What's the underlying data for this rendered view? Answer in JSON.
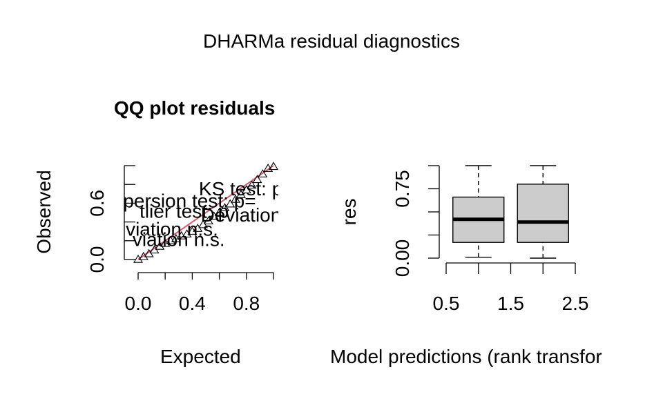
{
  "figure_title": "DHARMa residual diagnostics",
  "chart_data": [
    {
      "type": "scatter",
      "title": "QQ plot residuals",
      "xlabel": "Expected",
      "ylabel": "Observed",
      "xlim": [
        0,
        1
      ],
      "ylim": [
        0,
        1
      ],
      "xticks": [
        0.0,
        0.2,
        0.4,
        0.6,
        0.8,
        1.0
      ],
      "xtick_labels": [
        "0.0",
        "0.4",
        "0.8"
      ],
      "yticks": [
        0.0,
        0.2,
        0.4,
        0.6,
        0.8,
        1.0
      ],
      "ytick_labels": [
        "0.0",
        "0.6"
      ],
      "reference_line": {
        "from": [
          0,
          0
        ],
        "to": [
          1,
          1
        ],
        "color": "#DF536B"
      },
      "points": [
        [
          0.0,
          0.0
        ],
        [
          0.04,
          0.03
        ],
        [
          0.08,
          0.06
        ],
        [
          0.12,
          0.1
        ],
        [
          0.16,
          0.14
        ],
        [
          0.2,
          0.17
        ],
        [
          0.24,
          0.2
        ],
        [
          0.28,
          0.22
        ],
        [
          0.32,
          0.25
        ],
        [
          0.36,
          0.27
        ],
        [
          0.4,
          0.3
        ],
        [
          0.44,
          0.33
        ],
        [
          0.48,
          0.37
        ],
        [
          0.52,
          0.41
        ],
        [
          0.56,
          0.46
        ],
        [
          0.6,
          0.5
        ],
        [
          0.64,
          0.55
        ],
        [
          0.68,
          0.59
        ],
        [
          0.72,
          0.64
        ],
        [
          0.76,
          0.69
        ],
        [
          0.8,
          0.74
        ],
        [
          0.84,
          0.79
        ],
        [
          0.88,
          0.85
        ],
        [
          0.92,
          0.91
        ],
        [
          0.96,
          0.97
        ],
        [
          1.0,
          0.99
        ]
      ],
      "annotations": [
        {
          "text": "KS test: p=",
          "x": 0.8,
          "y": 0.75
        },
        {
          "text": "persion test: p=",
          "x": 0.38,
          "y": 0.62
        },
        {
          "text": "Deviation",
          "x": 0.76,
          "y": 0.47
        },
        {
          "text": "tlier test: p",
          "x": 0.34,
          "y": 0.51
        },
        {
          "text": "viation n.s.",
          "x": 0.25,
          "y": 0.32
        },
        {
          "text": "viation  n.s.",
          "x": 0.3,
          "y": 0.21
        }
      ]
    },
    {
      "type": "box",
      "xlabel": "Model predictions (rank transfor",
      "ylabel": "res",
      "xlim": [
        0.5,
        2.5
      ],
      "ylim": [
        0,
        1
      ],
      "xticks": [
        0.5,
        1.0,
        1.5,
        2.0,
        2.5
      ],
      "xtick_labels": [
        "0.5",
        "1.5",
        "2.5"
      ],
      "yticks": [
        0.0,
        0.25,
        0.5,
        0.75,
        1.0
      ],
      "ytick_labels": [
        "0.00",
        "0.75"
      ],
      "box_color": "#CCCCCC",
      "boxes": [
        {
          "x": 1,
          "min": 0.01,
          "q1": 0.17,
          "median": 0.42,
          "q3": 0.66,
          "max": 1.0
        },
        {
          "x": 2,
          "min": 0.0,
          "q1": 0.17,
          "median": 0.39,
          "q3": 0.8,
          "max": 1.0
        }
      ]
    }
  ]
}
